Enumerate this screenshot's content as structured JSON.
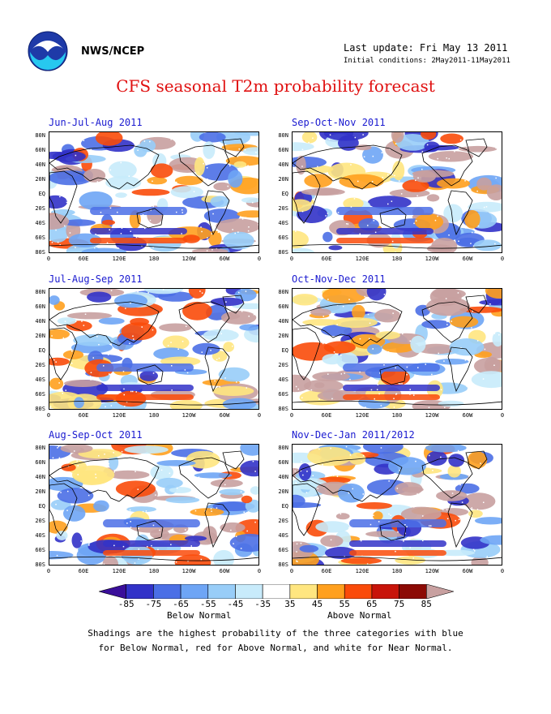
{
  "header": {
    "org": "NWS/NCEP",
    "last_update": "Last update: Fri May 13 2011",
    "initial_conditions": "Initial conditions: 2May2011-11May2011",
    "title": "CFS seasonal T2m probability forecast"
  },
  "axes": {
    "lat_labels": [
      "80N",
      "60N",
      "40N",
      "20N",
      "EQ",
      "20S",
      "40S",
      "60S",
      "80S"
    ],
    "lon_labels": [
      "0",
      "60E",
      "120E",
      "180",
      "120W",
      "60W",
      "0"
    ]
  },
  "panels": [
    {
      "id": "jja",
      "title": "Jun-Jul-Aug 2011"
    },
    {
      "id": "son",
      "title": "Sep-Oct-Nov 2011"
    },
    {
      "id": "jas",
      "title": "Jul-Aug-Sep 2011"
    },
    {
      "id": "ond",
      "title": "Oct-Nov-Dec 2011"
    },
    {
      "id": "aso",
      "title": "Aug-Sep-Oct 2011"
    },
    {
      "id": "ndj",
      "title": "Nov-Dec-Jan 2011/2012"
    }
  ],
  "legend": {
    "ticks": [
      "-85",
      "-75",
      "-65",
      "-55",
      "-45",
      "-35",
      "35",
      "45",
      "55",
      "65",
      "75",
      "85"
    ],
    "colors": [
      "#3a0e9a",
      "#3232c8",
      "#4b6fe6",
      "#6ea5f5",
      "#98cdf8",
      "#c8ebfb",
      "#ffffff",
      "#ffe680",
      "#ffa01e",
      "#fa4b0a",
      "#c8140a",
      "#8c0a05",
      "#c8a0a0"
    ],
    "below_label": "Below Normal",
    "above_label": "Above Normal"
  },
  "footnote": {
    "line1": "Shadings are the highest probability of the three categories with blue",
    "line2": "for Below Normal, red for Above Normal, and white for Near Normal."
  }
}
